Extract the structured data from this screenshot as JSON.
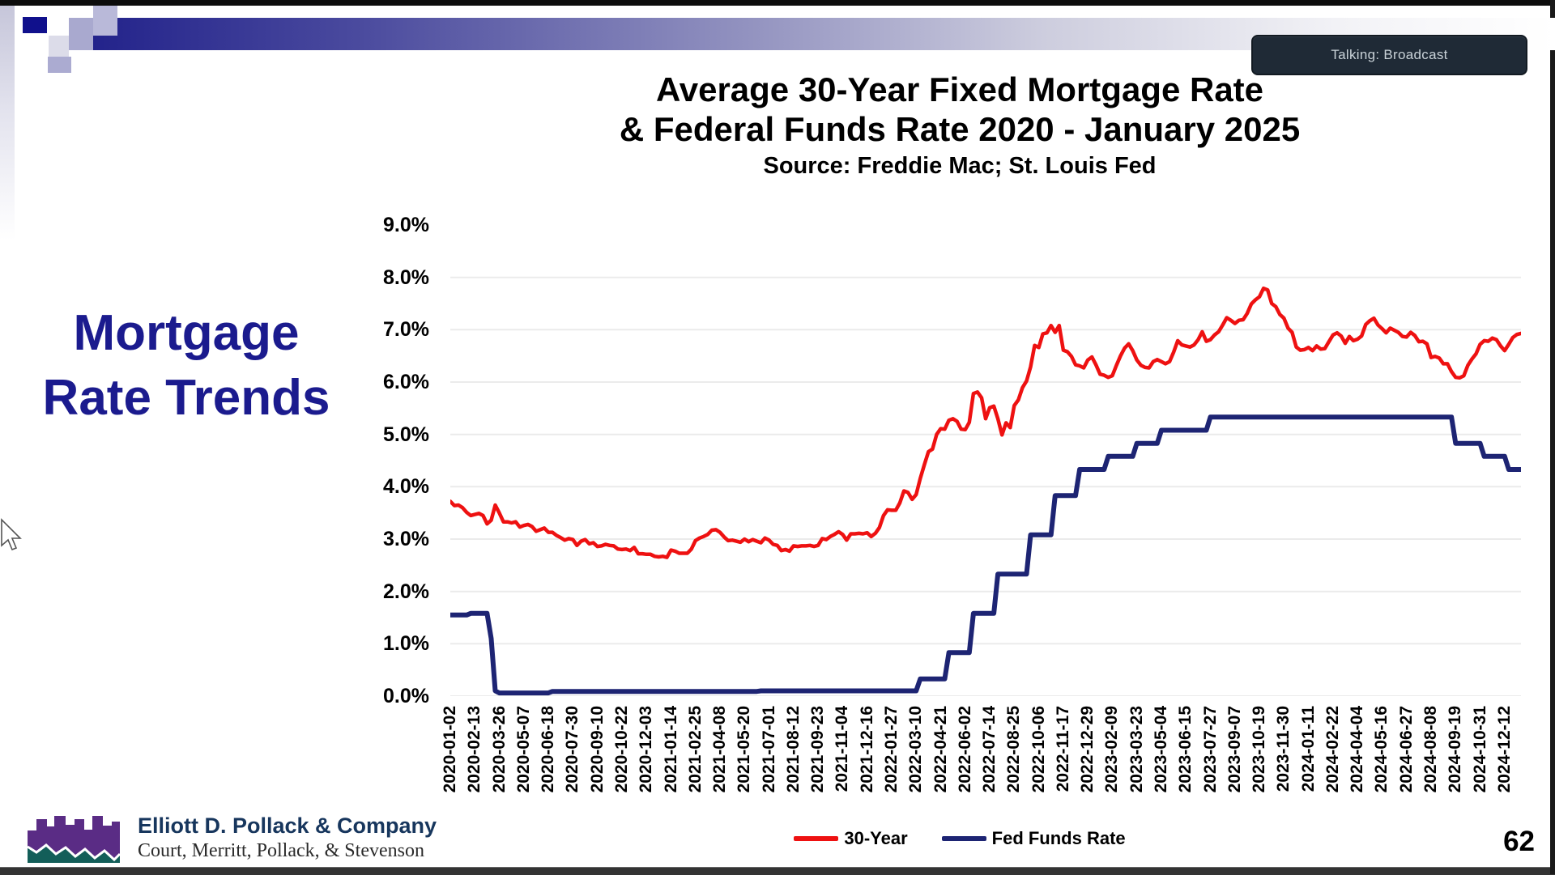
{
  "slide": {
    "page_number": "62",
    "side_title_lines": [
      "Mortgage",
      "Rate Trends"
    ],
    "status_badge": "Talking: Broadcast"
  },
  "logo": {
    "company": "Elliott D. Pollack & Company",
    "partners": "Court, Merritt, Pollack, & Stevenson"
  },
  "colors": {
    "accent_navy": "#1b1b8e",
    "series_red": "#ee1111",
    "series_navy": "#1d2473",
    "gridline": "#ebebeb"
  },
  "chart_data": {
    "type": "line",
    "title_line1": "Average 30-Year Fixed Mortgage Rate",
    "title_line2": "& Federal Funds Rate 2020 - January 2025",
    "subtitle": "Source: Freddie Mac; St. Louis Fed",
    "ylim": [
      0,
      9
    ],
    "grid": "horizontal",
    "legend_position": "bottom",
    "y_tick_labels": [
      "9.0%",
      "8.0%",
      "7.0%",
      "6.0%",
      "5.0%",
      "4.0%",
      "3.0%",
      "2.0%",
      "1.0%",
      "0.0%"
    ],
    "x_tick_interval_points": 6,
    "x_tick_labels": [
      "2020-01-02",
      "2020-02-13",
      "2020-03-26",
      "2020-05-07",
      "2020-06-18",
      "2020-07-30",
      "2020-09-10",
      "2020-10-22",
      "2020-12-03",
      "2021-01-14",
      "2021-02-25",
      "2021-04-08",
      "2021-05-20",
      "2021-07-01",
      "2021-08-12",
      "2021-09-23",
      "2021-11-04",
      "2021-12-16",
      "2022-01-27",
      "2022-03-10",
      "2022-04-21",
      "2022-06-02",
      "2022-07-14",
      "2022-08-25",
      "2022-10-06",
      "2022-11-17",
      "2022-12-29",
      "2023-02-09",
      "2023-03-23",
      "2023-05-04",
      "2023-06-15",
      "2023-07-27",
      "2023-09-07",
      "2023-10-19",
      "2023-11-30",
      "2024-01-11",
      "2024-02-22",
      "2024-04-04",
      "2024-05-16",
      "2024-06-27",
      "2024-08-08",
      "2024-09-19",
      "2024-10-31",
      "2024-12-12"
    ],
    "series": [
      {
        "name": "30-Year",
        "color": "#ee1111",
        "values": [
          3.72,
          3.64,
          3.65,
          3.6,
          3.51,
          3.45,
          3.47,
          3.49,
          3.45,
          3.29,
          3.36,
          3.65,
          3.5,
          3.33,
          3.33,
          3.31,
          3.33,
          3.23,
          3.26,
          3.28,
          3.24,
          3.15,
          3.18,
          3.21,
          3.13,
          3.13,
          3.07,
          3.03,
          2.98,
          3.01,
          2.99,
          2.88,
          2.96,
          2.99,
          2.91,
          2.93,
          2.86,
          2.87,
          2.9,
          2.88,
          2.87,
          2.81,
          2.8,
          2.81,
          2.78,
          2.84,
          2.72,
          2.72,
          2.71,
          2.71,
          2.67,
          2.66,
          2.67,
          2.65,
          2.79,
          2.77,
          2.73,
          2.73,
          2.73,
          2.81,
          2.97,
          3.02,
          3.05,
          3.09,
          3.17,
          3.18,
          3.13,
          3.04,
          2.97,
          2.98,
          2.96,
          2.94,
          3.0,
          2.95,
          2.99,
          2.96,
          2.93,
          3.02,
          2.98,
          2.9,
          2.88,
          2.78,
          2.8,
          2.77,
          2.87,
          2.86,
          2.87,
          2.87,
          2.88,
          2.86,
          2.88,
          3.01,
          2.99,
          3.05,
          3.09,
          3.14,
          3.09,
          2.98,
          3.1,
          3.1,
          3.11,
          3.1,
          3.12,
          3.05,
          3.11,
          3.22,
          3.45,
          3.56,
          3.55,
          3.55,
          3.69,
          3.92,
          3.89,
          3.76,
          3.85,
          4.16,
          4.42,
          4.67,
          4.72,
          5.0,
          5.11,
          5.1,
          5.27,
          5.3,
          5.25,
          5.1,
          5.09,
          5.23,
          5.78,
          5.81,
          5.7,
          5.3,
          5.51,
          5.54,
          5.3,
          4.99,
          5.22,
          5.13,
          5.55,
          5.66,
          5.89,
          6.02,
          6.29,
          6.7,
          6.66,
          6.92,
          6.94,
          7.08,
          6.95,
          7.08,
          6.61,
          6.58,
          6.49,
          6.33,
          6.31,
          6.27,
          6.42,
          6.48,
          6.33,
          6.15,
          6.13,
          6.09,
          6.12,
          6.32,
          6.5,
          6.65,
          6.73,
          6.6,
          6.42,
          6.32,
          6.28,
          6.27,
          6.39,
          6.43,
          6.39,
          6.35,
          6.39,
          6.57,
          6.79,
          6.71,
          6.69,
          6.67,
          6.71,
          6.81,
          6.96,
          6.78,
          6.81,
          6.9,
          6.96,
          7.09,
          7.23,
          7.18,
          7.12,
          7.18,
          7.19,
          7.31,
          7.49,
          7.57,
          7.63,
          7.79,
          7.76,
          7.5,
          7.44,
          7.29,
          7.22,
          7.03,
          6.95,
          6.67,
          6.61,
          6.62,
          6.66,
          6.6,
          6.69,
          6.63,
          6.64,
          6.77,
          6.9,
          6.94,
          6.88,
          6.74,
          6.87,
          6.79,
          6.82,
          6.88,
          7.1,
          7.17,
          7.22,
          7.09,
          7.02,
          6.94,
          7.03,
          6.99,
          6.95,
          6.87,
          6.86,
          6.95,
          6.89,
          6.77,
          6.78,
          6.73,
          6.47,
          6.49,
          6.46,
          6.35,
          6.35,
          6.2,
          6.09,
          6.08,
          6.12,
          6.32,
          6.44,
          6.54,
          6.72,
          6.79,
          6.78,
          6.84,
          6.81,
          6.69,
          6.6,
          6.72,
          6.85,
          6.91,
          6.93
        ]
      },
      {
        "name": "Fed Funds Rate",
        "color": "#1d2473",
        "values": [
          1.55,
          1.55,
          1.55,
          1.55,
          1.55,
          1.58,
          1.58,
          1.58,
          1.58,
          1.58,
          1.1,
          0.1,
          0.06,
          0.06,
          0.06,
          0.06,
          0.06,
          0.06,
          0.06,
          0.06,
          0.06,
          0.06,
          0.06,
          0.06,
          0.06,
          0.09,
          0.09,
          0.09,
          0.09,
          0.09,
          0.09,
          0.09,
          0.09,
          0.09,
          0.09,
          0.09,
          0.09,
          0.09,
          0.09,
          0.09,
          0.09,
          0.09,
          0.09,
          0.09,
          0.09,
          0.09,
          0.09,
          0.09,
          0.09,
          0.09,
          0.09,
          0.09,
          0.09,
          0.09,
          0.09,
          0.09,
          0.09,
          0.09,
          0.09,
          0.09,
          0.09,
          0.09,
          0.09,
          0.09,
          0.09,
          0.09,
          0.09,
          0.09,
          0.09,
          0.09,
          0.09,
          0.09,
          0.09,
          0.09,
          0.09,
          0.09,
          0.1,
          0.1,
          0.1,
          0.1,
          0.1,
          0.1,
          0.1,
          0.1,
          0.1,
          0.1,
          0.1,
          0.1,
          0.1,
          0.1,
          0.1,
          0.1,
          0.1,
          0.1,
          0.1,
          0.1,
          0.1,
          0.1,
          0.1,
          0.1,
          0.1,
          0.1,
          0.1,
          0.1,
          0.1,
          0.1,
          0.1,
          0.1,
          0.1,
          0.1,
          0.1,
          0.1,
          0.1,
          0.1,
          0.1,
          0.33,
          0.33,
          0.33,
          0.33,
          0.33,
          0.33,
          0.33,
          0.83,
          0.83,
          0.83,
          0.83,
          0.83,
          0.83,
          1.58,
          1.58,
          1.58,
          1.58,
          1.58,
          1.58,
          2.33,
          2.33,
          2.33,
          2.33,
          2.33,
          2.33,
          2.33,
          2.33,
          3.08,
          3.08,
          3.08,
          3.08,
          3.08,
          3.08,
          3.83,
          3.83,
          3.83,
          3.83,
          3.83,
          3.83,
          4.33,
          4.33,
          4.33,
          4.33,
          4.33,
          4.33,
          4.33,
          4.58,
          4.58,
          4.58,
          4.58,
          4.58,
          4.58,
          4.58,
          4.83,
          4.83,
          4.83,
          4.83,
          4.83,
          4.83,
          5.08,
          5.08,
          5.08,
          5.08,
          5.08,
          5.08,
          5.08,
          5.08,
          5.08,
          5.08,
          5.08,
          5.08,
          5.33,
          5.33,
          5.33,
          5.33,
          5.33,
          5.33,
          5.33,
          5.33,
          5.33,
          5.33,
          5.33,
          5.33,
          5.33,
          5.33,
          5.33,
          5.33,
          5.33,
          5.33,
          5.33,
          5.33,
          5.33,
          5.33,
          5.33,
          5.33,
          5.33,
          5.33,
          5.33,
          5.33,
          5.33,
          5.33,
          5.33,
          5.33,
          5.33,
          5.33,
          5.33,
          5.33,
          5.33,
          5.33,
          5.33,
          5.33,
          5.33,
          5.33,
          5.33,
          5.33,
          5.33,
          5.33,
          5.33,
          5.33,
          5.33,
          5.33,
          5.33,
          5.33,
          5.33,
          5.33,
          5.33,
          5.33,
          5.33,
          5.33,
          5.33,
          5.33,
          4.83,
          4.83,
          4.83,
          4.83,
          4.83,
          4.83,
          4.83,
          4.58,
          4.58,
          4.58,
          4.58,
          4.58,
          4.58,
          4.33,
          4.33,
          4.33,
          4.33
        ]
      }
    ]
  }
}
